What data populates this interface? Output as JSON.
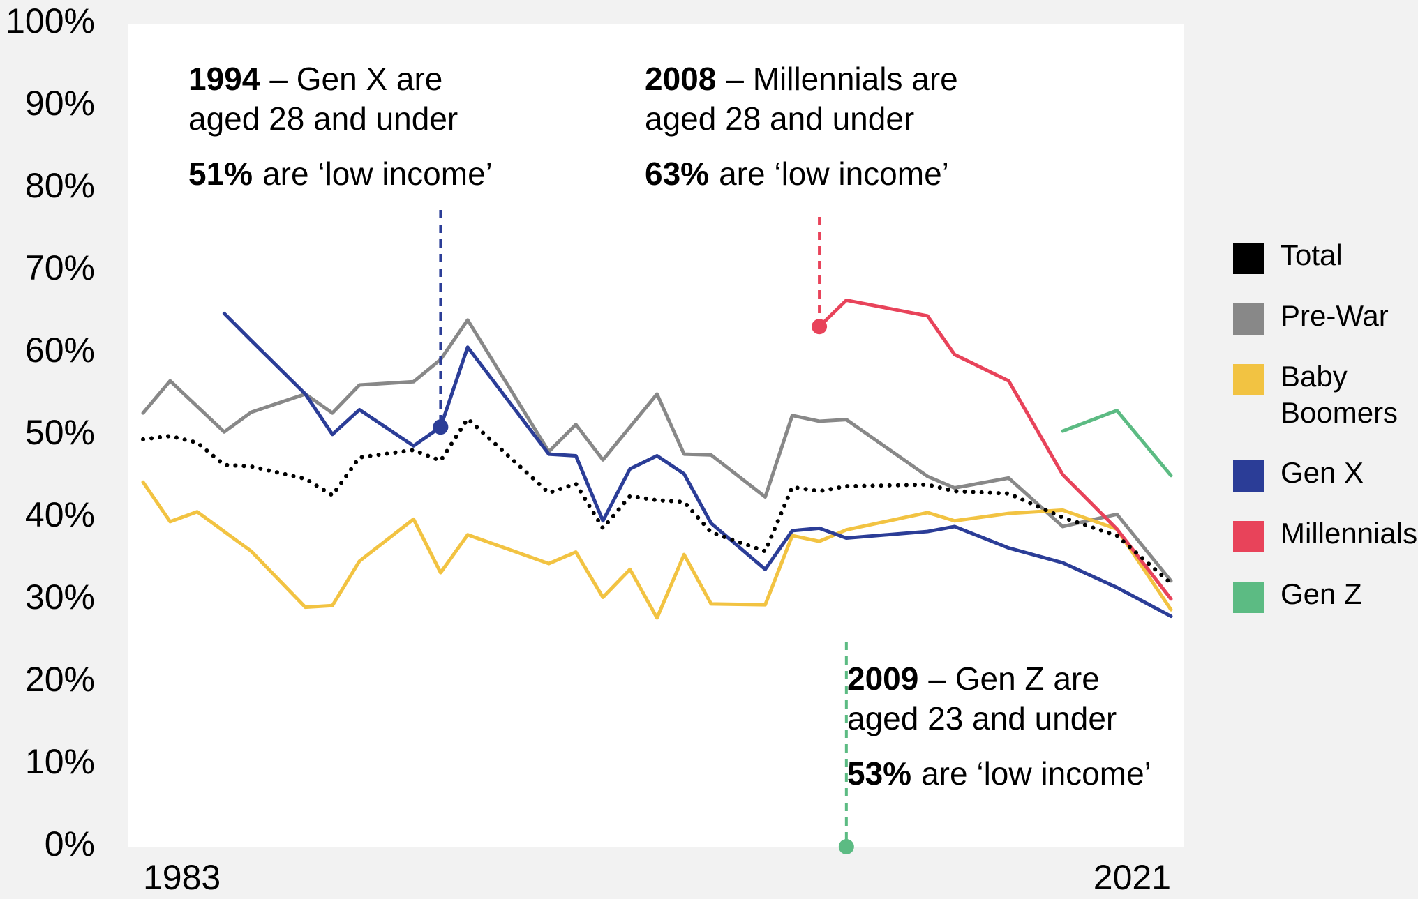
{
  "chart_data": {
    "type": "line",
    "x": [
      1983,
      1984,
      1985,
      1986,
      1987,
      1989,
      1990,
      1991,
      1993,
      1994,
      1995,
      1998,
      1999,
      2000,
      2001,
      2002,
      2003,
      2004,
      2006,
      2007,
      2008,
      2009,
      2012,
      2013,
      2015,
      2017,
      2019,
      2021
    ],
    "xlim": [
      1983,
      2021
    ],
    "xticks": [
      1983,
      2021
    ],
    "ylim": [
      0,
      100
    ],
    "yticks": [
      {
        "value": 0,
        "label": "0%"
      },
      {
        "value": 10,
        "label": "10%"
      },
      {
        "value": 20,
        "label": "20%"
      },
      {
        "value": 30,
        "label": "30%"
      },
      {
        "value": 40,
        "label": "40%"
      },
      {
        "value": 50,
        "label": "50%"
      },
      {
        "value": 60,
        "label": "60%"
      },
      {
        "value": 70,
        "label": "70%"
      },
      {
        "value": 80,
        "label": "80%"
      },
      {
        "value": 90,
        "label": "90%"
      },
      {
        "value": 100,
        "label": "100%"
      }
    ],
    "series": [
      {
        "name": "Total",
        "color": "#000000",
        "dotted": true,
        "values": [
          49.5,
          49.9,
          49.1,
          46.4,
          46.2,
          44.7,
          42.7,
          47.3,
          48.2,
          46.9,
          52,
          43,
          44.1,
          38.7,
          42.6,
          42.1,
          41.9,
          38.2,
          35.9,
          43.7,
          43.2,
          43.8,
          44,
          43.2,
          42.9,
          40,
          37.8,
          32
        ]
      },
      {
        "name": "Pre-War",
        "color": "#888888",
        "values": [
          52.7,
          56.6,
          53.5,
          50.4,
          52.8,
          55,
          52.7,
          56.1,
          56.5,
          59.2,
          64,
          48,
          51.3,
          47,
          51,
          55,
          47.7,
          47.6,
          42.5,
          52.4,
          51.7,
          51.9,
          45,
          43.6,
          44.8,
          38.9,
          40.4,
          32.3
        ]
      },
      {
        "name": "Baby Boomers",
        "color": "#f2c342",
        "values": [
          44.3,
          39.5,
          40.7,
          38.3,
          35.9,
          29.1,
          29.3,
          34.7,
          39.8,
          33.3,
          37.9,
          34.4,
          35.8,
          30.3,
          33.7,
          27.8,
          35.5,
          29.5,
          29.4,
          37.8,
          37.1,
          38.5,
          40.6,
          39.6,
          40.5,
          40.9,
          38.6,
          28.8
        ]
      },
      {
        "name": "Gen X",
        "color": "#2b3d97",
        "values": [
          null,
          null,
          null,
          64.8,
          61.5,
          55,
          50.1,
          53.1,
          48.7,
          51,
          60.7,
          47.7,
          47.5,
          39.6,
          45.9,
          47.5,
          45.3,
          39.3,
          33.7,
          38.4,
          38.7,
          37.5,
          38.3,
          38.9,
          36.3,
          34.5,
          31.5,
          28
        ]
      },
      {
        "name": "Millennials",
        "color": "#e8435a",
        "values": [
          null,
          null,
          null,
          null,
          null,
          null,
          null,
          null,
          null,
          null,
          null,
          null,
          null,
          null,
          null,
          null,
          null,
          null,
          null,
          null,
          63.2,
          66.4,
          64.5,
          59.8,
          56.6,
          45.2,
          38.6,
          30.1
        ]
      },
      {
        "name": "Gen Z",
        "color": "#5cbb83",
        "values": [
          null,
          null,
          null,
          null,
          null,
          null,
          null,
          null,
          null,
          null,
          null,
          null,
          null,
          null,
          null,
          null,
          null,
          null,
          null,
          null,
          null,
          null,
          null,
          null,
          null,
          50.5,
          53,
          45.1
        ]
      }
    ],
    "annotations": [
      {
        "year": "1994",
        "text": "– Gen X are",
        "line2": "aged 28 and under",
        "share": "51%",
        "share_text": "are ‘low income’",
        "series": "Gen X"
      },
      {
        "year": "2008",
        "text": "– Millennials are",
        "line2": "aged 28 and under",
        "share": "63%",
        "share_text": "are ‘low income’",
        "series": "Millennials"
      },
      {
        "year": "2009",
        "text": "– Gen Z are",
        "line2": "aged 23 and under",
        "share": "53%",
        "share_text": "are ‘low income’",
        "series": "Gen Z"
      }
    ],
    "legend": "right"
  }
}
